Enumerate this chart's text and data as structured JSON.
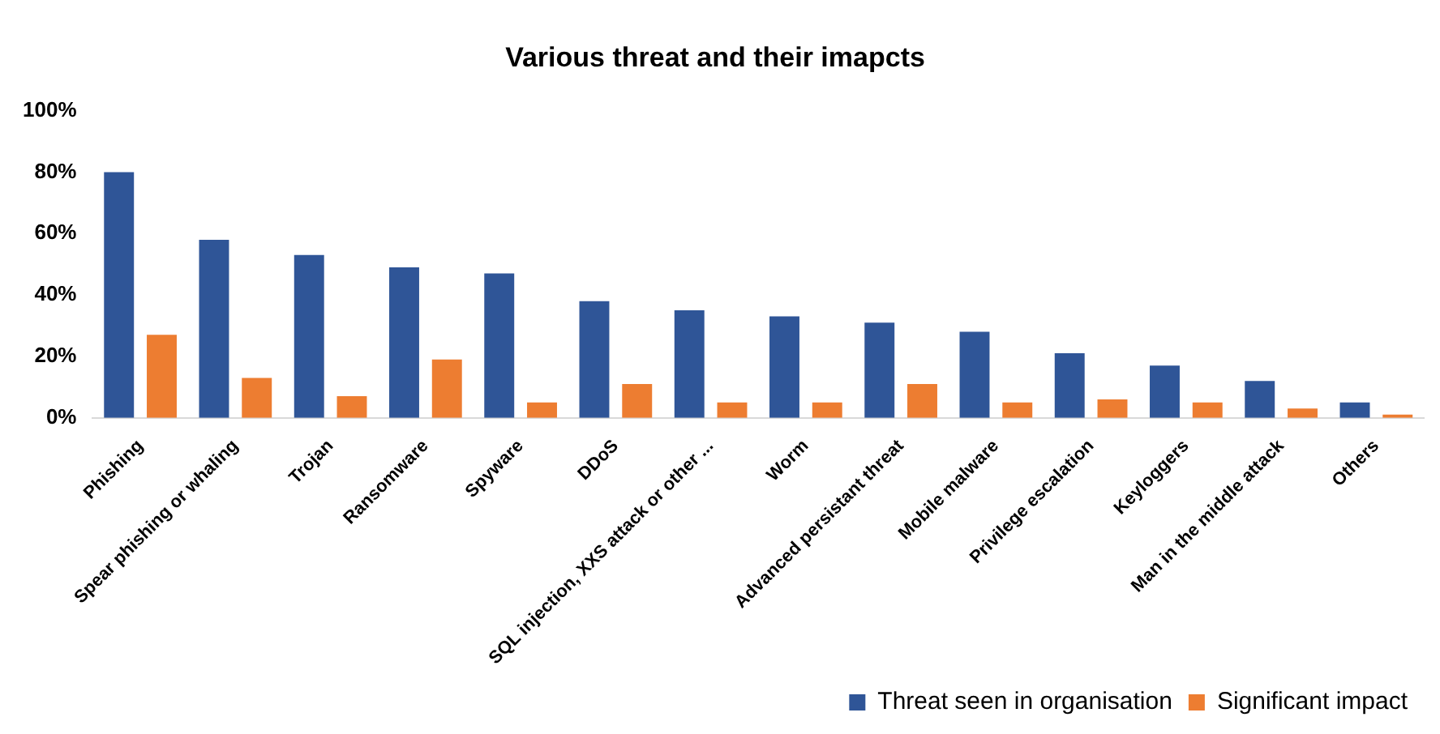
{
  "chart_data": {
    "type": "bar",
    "title": "Various threat and their imapcts",
    "categories": [
      "Phishing",
      "Spear phishing or whaling",
      "Trojan",
      "Ransomware",
      "Spyware",
      "DDoS",
      "SQL injection, XXS attack or other ...",
      "Worm",
      "Advanced persistant threat",
      "Mobile malware",
      "Privilege escalation",
      "Keyloggers",
      "Man in the middle attack",
      "Others"
    ],
    "series": [
      {
        "name": "Threat seen in organisation",
        "color": "#2f5597",
        "values": [
          80,
          58,
          53,
          49,
          47,
          38,
          35,
          33,
          31,
          28,
          21,
          17,
          12,
          5
        ]
      },
      {
        "name": "Significant impact",
        "color": "#ed7d31",
        "values": [
          27,
          13,
          7,
          19,
          5,
          11,
          5,
          5,
          11,
          5,
          6,
          5,
          3,
          1
        ]
      }
    ],
    "ylim": [
      0,
      100
    ],
    "yticks": [
      {
        "value": 0,
        "label": "0%"
      },
      {
        "value": 20,
        "label": "20%"
      },
      {
        "value": 40,
        "label": "40%"
      },
      {
        "value": 60,
        "label": "60%"
      },
      {
        "value": 80,
        "label": "80%"
      },
      {
        "value": 100,
        "label": "100%"
      }
    ],
    "grid": false,
    "legend": "bottom right"
  }
}
